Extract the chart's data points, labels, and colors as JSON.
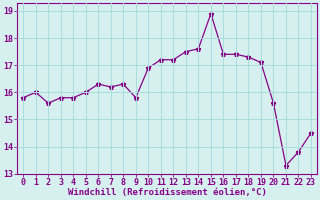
{
  "x": [
    0,
    1,
    2,
    3,
    4,
    5,
    6,
    7,
    8,
    9,
    10,
    11,
    12,
    13,
    14,
    15,
    16,
    17,
    18,
    19,
    20,
    21,
    22,
    23
  ],
  "y": [
    15.8,
    16.0,
    15.6,
    15.8,
    15.8,
    16.0,
    16.3,
    16.2,
    16.3,
    15.8,
    16.9,
    17.2,
    17.2,
    17.5,
    17.6,
    18.9,
    17.4,
    17.4,
    17.3,
    17.1,
    15.6,
    13.3,
    13.8,
    14.5
  ],
  "line_color": "#880088",
  "marker": "*",
  "marker_size": 3.5,
  "xlabel": "Windchill (Refroidissement éolien,°C)",
  "xlim": [
    -0.5,
    23.5
  ],
  "ylim": [
    13,
    19.3
  ],
  "yticks": [
    13,
    14,
    15,
    16,
    17,
    18,
    19
  ],
  "xticks": [
    0,
    1,
    2,
    3,
    4,
    5,
    6,
    7,
    8,
    9,
    10,
    11,
    12,
    13,
    14,
    15,
    16,
    17,
    18,
    19,
    20,
    21,
    22,
    23
  ],
  "bg_color": "#d6f0f0",
  "grid_color": "#aadddd",
  "font_color": "#880088",
  "tick_fontsize": 6.0,
  "xlabel_fontsize": 6.5
}
